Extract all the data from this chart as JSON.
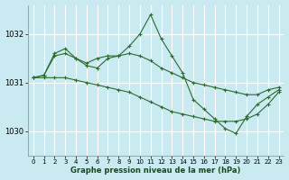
{
  "title": "Graphe pression niveau de la mer (hPa)",
  "background_color": "#c8eaf0",
  "plot_bg_color": "#c8eaf0",
  "line_color": "#2d6a2d",
  "xlim": [
    -0.5,
    23.5
  ],
  "ylim": [
    1029.5,
    1032.6
  ],
  "yticks": [
    1030,
    1031,
    1032
  ],
  "xticks": [
    0,
    1,
    2,
    3,
    4,
    5,
    6,
    7,
    8,
    9,
    10,
    11,
    12,
    13,
    14,
    15,
    16,
    17,
    18,
    19,
    20,
    21,
    22,
    23
  ],
  "series": [
    {
      "x": [
        0,
        1,
        2,
        3,
        4,
        5,
        6,
        7,
        8,
        9,
        10,
        11,
        12,
        13,
        14,
        15,
        16,
        17,
        18,
        19,
        20,
        21,
        22,
        23
      ],
      "y": [
        1031.1,
        1031.15,
        1031.55,
        1031.6,
        1031.5,
        1031.4,
        1031.5,
        1031.55,
        1031.55,
        1031.6,
        1031.55,
        1031.45,
        1031.3,
        1031.2,
        1031.1,
        1031.0,
        1030.95,
        1030.9,
        1030.85,
        1030.8,
        1030.75,
        1030.75,
        1030.85,
        1030.9
      ]
    },
    {
      "x": [
        0,
        1,
        2,
        3,
        4,
        5,
        6,
        7,
        8,
        9,
        10,
        11,
        12,
        13,
        14,
        15,
        16,
        17,
        18,
        19,
        20,
        21,
        22,
        23
      ],
      "y": [
        1031.1,
        1031.1,
        1031.1,
        1031.1,
        1031.05,
        1031.0,
        1030.95,
        1030.9,
        1030.85,
        1030.8,
        1030.7,
        1030.6,
        1030.5,
        1030.4,
        1030.35,
        1030.3,
        1030.25,
        1030.2,
        1030.2,
        1030.2,
        1030.25,
        1030.35,
        1030.55,
        1030.8
      ]
    },
    {
      "x": [
        0,
        1,
        2,
        3,
        4,
        5,
        6,
        7,
        8,
        9,
        10,
        11,
        12,
        13,
        14,
        15,
        16,
        17,
        18,
        19,
        20,
        21,
        22,
        23
      ],
      "y": [
        1031.1,
        1031.15,
        1031.6,
        1031.7,
        1031.5,
        1031.35,
        1031.3,
        1031.5,
        1031.55,
        1031.75,
        1032.0,
        1032.4,
        1031.9,
        1031.55,
        1031.2,
        1030.65,
        1030.45,
        1030.25,
        1030.05,
        1029.95,
        1030.3,
        1030.55,
        1030.7,
        1030.85
      ]
    }
  ]
}
